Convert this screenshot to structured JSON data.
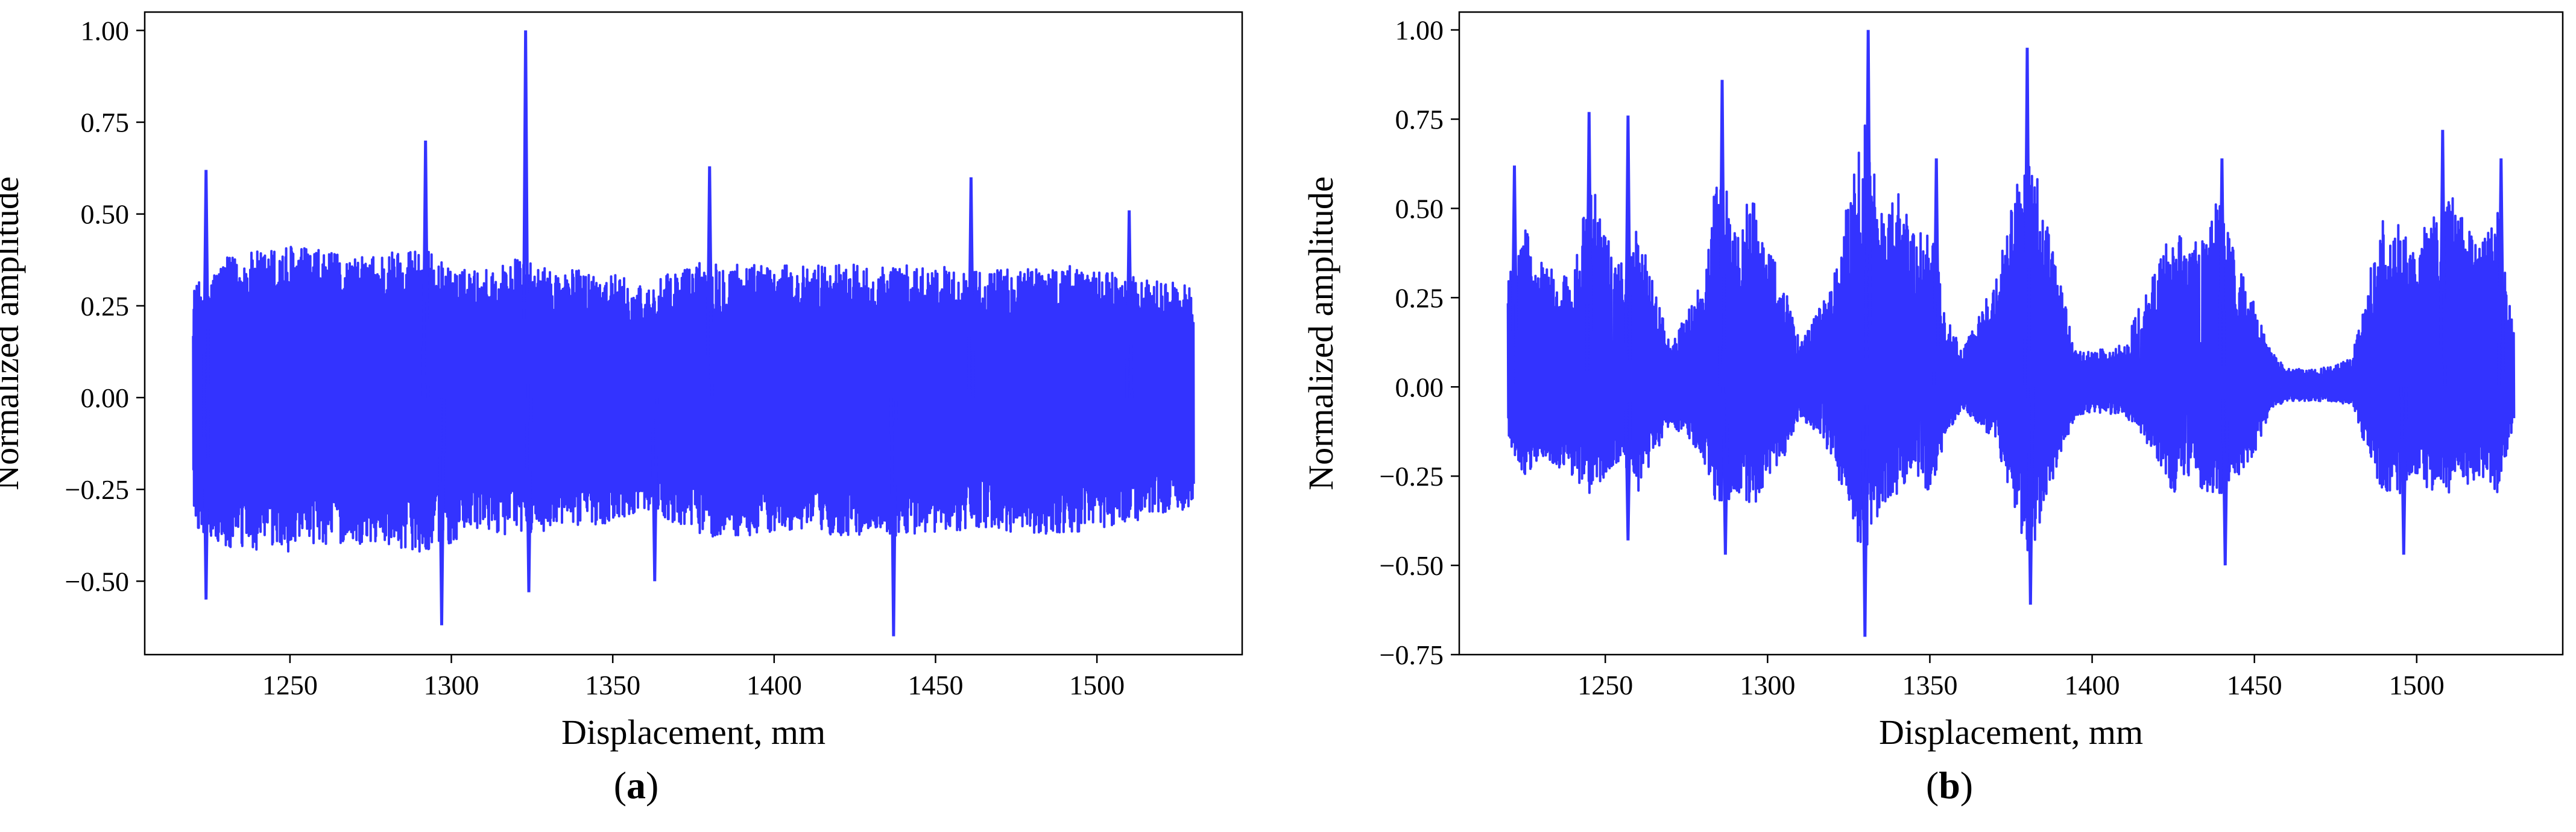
{
  "chart_data": [
    {
      "type": "line",
      "panel_label": "a",
      "xlabel": "Displacement, mm",
      "ylabel": "Normalized amplitude",
      "xlim": [
        1205,
        1545
      ],
      "ylim": [
        -0.7,
        1.05
      ],
      "xticks": [
        1250,
        1300,
        1350,
        1400,
        1450,
        1500
      ],
      "xtick_labels": [
        "1250",
        "1300",
        "1350",
        "1400",
        "1450",
        "1500"
      ],
      "yticks": [
        -0.5,
        -0.25,
        0.0,
        0.25,
        0.5,
        0.75,
        1.0
      ],
      "ytick_labels": [
        "−0.50",
        "−0.25",
        "0.00",
        "0.25",
        "0.50",
        "0.75",
        "1.00"
      ],
      "x_range": [
        1220,
        1530
      ],
      "series": [
        {
          "color": "#3333ff",
          "envelope_x": [
            1220,
            1230,
            1240,
            1250,
            1260,
            1270,
            1280,
            1290,
            1300,
            1310,
            1320,
            1330,
            1340,
            1350,
            1360,
            1370,
            1380,
            1390,
            1400,
            1410,
            1420,
            1430,
            1440,
            1450,
            1460,
            1470,
            1480,
            1490,
            1500,
            1510,
            1520,
            1530
          ],
          "envelope_upper": [
            0.3,
            0.38,
            0.4,
            0.42,
            0.4,
            0.38,
            0.4,
            0.42,
            0.35,
            0.35,
            0.38,
            0.35,
            0.35,
            0.34,
            0.3,
            0.35,
            0.38,
            0.37,
            0.36,
            0.36,
            0.37,
            0.36,
            0.36,
            0.36,
            0.35,
            0.35,
            0.36,
            0.36,
            0.35,
            0.33,
            0.32,
            0.3
          ],
          "envelope_lower": [
            -0.35,
            -0.42,
            -0.42,
            -0.42,
            -0.4,
            -0.4,
            -0.4,
            -0.42,
            -0.4,
            -0.36,
            -0.38,
            -0.36,
            -0.35,
            -0.34,
            -0.3,
            -0.35,
            -0.38,
            -0.38,
            -0.37,
            -0.36,
            -0.38,
            -0.37,
            -0.38,
            -0.37,
            -0.36,
            -0.36,
            -0.38,
            -0.38,
            -0.36,
            -0.34,
            -0.32,
            -0.3
          ],
          "peaks": [
            {
              "x": 1224,
              "y": 0.62
            },
            {
              "x": 1224,
              "y": -0.55
            },
            {
              "x": 1292,
              "y": 0.7
            },
            {
              "x": 1297,
              "y": -0.62
            },
            {
              "x": 1323,
              "y": 1.0
            },
            {
              "x": 1324,
              "y": -0.53
            },
            {
              "x": 1380,
              "y": 0.63
            },
            {
              "x": 1437,
              "y": -0.65
            },
            {
              "x": 1461,
              "y": 0.6
            },
            {
              "x": 1510,
              "y": 0.51
            },
            {
              "x": 1363,
              "y": -0.5
            }
          ]
        }
      ]
    },
    {
      "type": "line",
      "panel_label": "b",
      "xlabel": "Displacement, mm",
      "ylabel": "Normalized amplitude",
      "xlim": [
        1205,
        1545
      ],
      "ylim": [
        -0.75,
        1.05
      ],
      "xticks": [
        1250,
        1300,
        1350,
        1400,
        1450,
        1500
      ],
      "xtick_labels": [
        "1250",
        "1300",
        "1350",
        "1400",
        "1450",
        "1500"
      ],
      "yticks": [
        -0.75,
        -0.5,
        -0.25,
        0.0,
        0.25,
        0.5,
        0.75,
        1.0
      ],
      "ytick_labels": [
        "−0.75",
        "−0.50",
        "−0.25",
        "0.00",
        "0.25",
        "0.50",
        "0.75",
        "1.00"
      ],
      "x_range": [
        1220,
        1530
      ],
      "series": [
        {
          "color": "#3333ff",
          "envelope_x": [
            1220,
            1225,
            1230,
            1240,
            1245,
            1250,
            1255,
            1260,
            1270,
            1280,
            1285,
            1290,
            1295,
            1300,
            1305,
            1310,
            1320,
            1325,
            1330,
            1335,
            1340,
            1345,
            1350,
            1355,
            1360,
            1370,
            1375,
            1380,
            1385,
            1390,
            1395,
            1400,
            1410,
            1420,
            1425,
            1430,
            1435,
            1440,
            1445,
            1450,
            1455,
            1460,
            1470,
            1480,
            1485,
            1490,
            1495,
            1500,
            1505,
            1510,
            1520,
            1525,
            1530
          ],
          "envelope_upper": [
            0.3,
            0.45,
            0.35,
            0.3,
            0.6,
            0.45,
            0.35,
            0.45,
            0.12,
            0.3,
            0.65,
            0.45,
            0.55,
            0.4,
            0.3,
            0.12,
            0.3,
            0.55,
            0.75,
            0.5,
            0.55,
            0.45,
            0.5,
            0.2,
            0.1,
            0.3,
            0.5,
            0.75,
            0.5,
            0.3,
            0.1,
            0.1,
            0.12,
            0.35,
            0.45,
            0.4,
            0.45,
            0.55,
            0.35,
            0.25,
            0.1,
            0.05,
            0.05,
            0.08,
            0.3,
            0.5,
            0.45,
            0.4,
            0.5,
            0.55,
            0.4,
            0.5,
            0.15
          ],
          "envelope_lower": [
            -0.15,
            -0.25,
            -0.2,
            -0.25,
            -0.3,
            -0.25,
            -0.2,
            -0.3,
            -0.1,
            -0.2,
            -0.35,
            -0.3,
            -0.35,
            -0.25,
            -0.2,
            -0.08,
            -0.2,
            -0.35,
            -0.5,
            -0.35,
            -0.3,
            -0.25,
            -0.3,
            -0.15,
            -0.06,
            -0.15,
            -0.3,
            -0.5,
            -0.35,
            -0.2,
            -0.08,
            -0.07,
            -0.08,
            -0.2,
            -0.3,
            -0.25,
            -0.3,
            -0.3,
            -0.25,
            -0.2,
            -0.06,
            -0.04,
            -0.04,
            -0.05,
            -0.2,
            -0.3,
            -0.3,
            -0.25,
            -0.3,
            -0.3,
            -0.25,
            -0.3,
            -0.1
          ],
          "peaks": [
            {
              "x": 1222,
              "y": 0.62
            },
            {
              "x": 1245,
              "y": 0.77
            },
            {
              "x": 1257,
              "y": 0.76
            },
            {
              "x": 1257,
              "y": -0.43
            },
            {
              "x": 1286,
              "y": 0.86
            },
            {
              "x": 1287,
              "y": -0.47
            },
            {
              "x": 1331,
              "y": 1.0
            },
            {
              "x": 1330,
              "y": -0.7
            },
            {
              "x": 1352,
              "y": 0.64
            },
            {
              "x": 1380,
              "y": 0.95
            },
            {
              "x": 1381,
              "y": -0.61
            },
            {
              "x": 1440,
              "y": 0.64
            },
            {
              "x": 1441,
              "y": -0.5
            },
            {
              "x": 1508,
              "y": 0.72
            },
            {
              "x": 1526,
              "y": 0.64
            },
            {
              "x": 1496,
              "y": -0.47
            }
          ]
        }
      ]
    }
  ],
  "captions": {
    "a": "a",
    "b": "b"
  }
}
